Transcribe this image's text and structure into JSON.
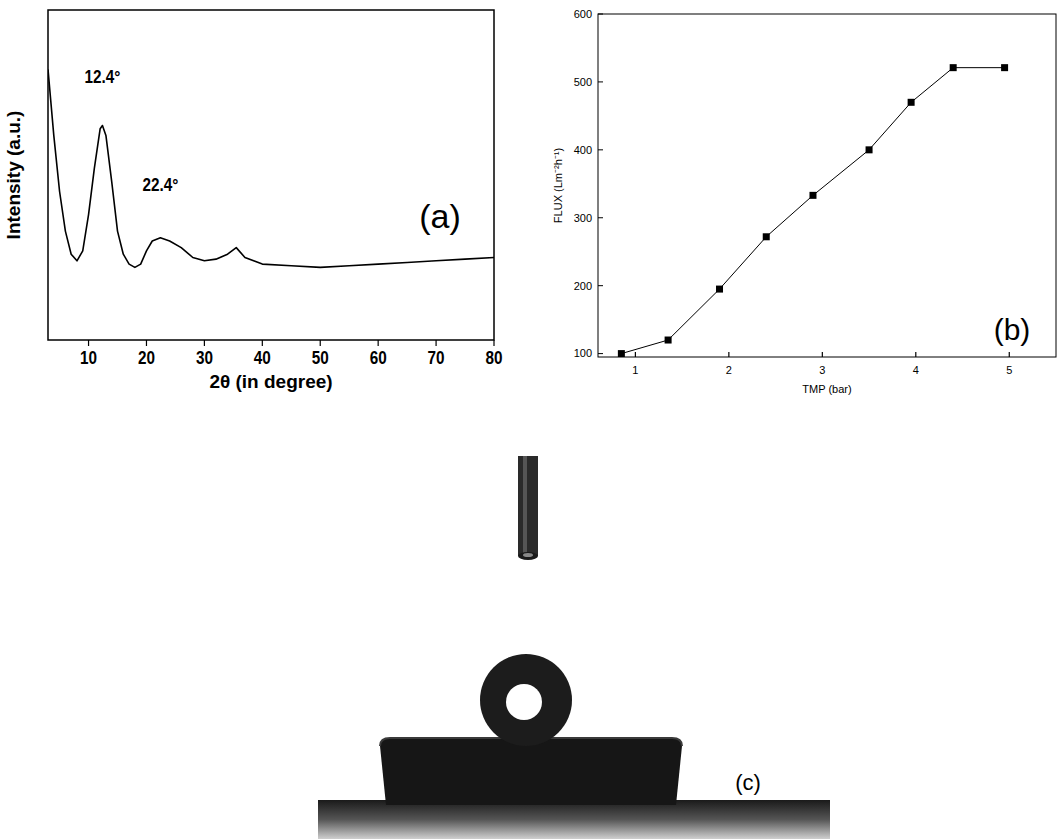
{
  "chart_data": [
    {
      "type": "line",
      "panel_label": "(a)",
      "x_label": "2θ (in degree)",
      "y_label": "Intensity (a.u.)",
      "color": "#000000",
      "tick_labels": "x",
      "x": [
        3,
        4,
        5,
        6,
        7,
        8,
        9,
        10,
        11,
        12,
        12.4,
        13,
        14,
        15,
        16,
        17,
        18,
        19,
        20,
        21,
        22.4,
        24,
        26,
        28,
        30,
        32,
        34,
        35.5,
        37,
        40,
        45,
        50,
        55,
        60,
        65,
        70,
        75,
        80
      ],
      "values": [
        82,
        62,
        45,
        33,
        26,
        24,
        27,
        38,
        52,
        64,
        65,
        62,
        48,
        33,
        26,
        23,
        22,
        23,
        27,
        30,
        31,
        30,
        28,
        25,
        24,
        24.5,
        26,
        28,
        25,
        23,
        22.5,
        22,
        22.5,
        23,
        23.5,
        24,
        24.5,
        25
      ],
      "xlim": [
        3,
        80
      ],
      "xticks": [
        10,
        20,
        30,
        40,
        50,
        60,
        70,
        80
      ],
      "ylim": [
        0,
        100
      ],
      "annotations": [
        {
          "x": 12.4,
          "y": 78,
          "text": "12.4°"
        },
        {
          "x": 22.4,
          "y": 45,
          "text": "22.4°"
        }
      ]
    },
    {
      "type": "line",
      "panel_label": "(b)",
      "x_label": "TMP (bar)",
      "y_label": "FLUX (Lm⁻²h⁻¹)",
      "color": "#000000",
      "marker": "square",
      "x": [
        0.85,
        1.35,
        1.9,
        2.4,
        2.9,
        3.5,
        3.95,
        4.4,
        4.95
      ],
      "values": [
        100,
        120,
        195,
        272,
        333,
        400,
        470,
        521,
        521
      ],
      "xlim": [
        0.6,
        5.5
      ],
      "xticks": [
        1,
        2,
        3,
        4,
        5
      ],
      "ylim": [
        95,
        600
      ],
      "yticks": [
        100,
        200,
        300,
        400,
        500,
        600
      ]
    }
  ],
  "photo": {
    "label": "(c)"
  }
}
